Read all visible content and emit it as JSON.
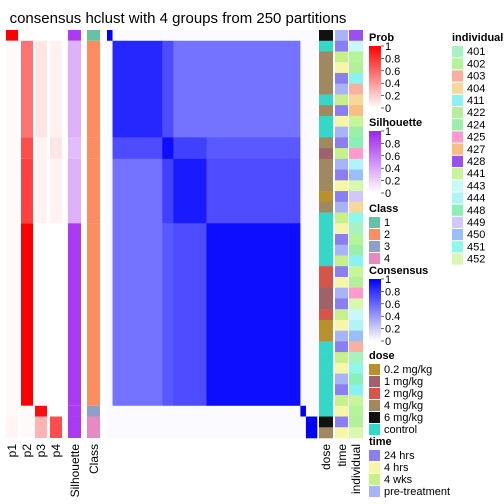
{
  "chart_data": {
    "type": "heatmap",
    "title": "consensus hclust with 4 groups from 250 partitions",
    "annotation_columns": [
      "p1",
      "p2",
      "p3",
      "p4",
      "Silhouette",
      "Class"
    ],
    "row_annotation_columns": [
      "dose",
      "time",
      "individual"
    ],
    "groups": [
      {
        "class": "1",
        "size": 1
      },
      {
        "class": "2",
        "size": 9
      },
      {
        "class": "2",
        "size": 2
      },
      {
        "class": "2",
        "size": 6
      },
      {
        "class": "2",
        "size": 17
      },
      {
        "class": "3",
        "size": 1
      },
      {
        "class": "4",
        "size": 2
      }
    ],
    "class_colors": {
      "1": "#66C2A5",
      "2": "#FC8D62",
      "3": "#8DA0CB",
      "4": "#E78AC3"
    },
    "legends": [
      {
        "title": "Prob",
        "kind": "gradient",
        "ticks": [
          "1",
          "0.8",
          "0.6",
          "0.4",
          "0.2",
          "0"
        ],
        "colors": [
          "#FF0000",
          "#FFFFFF"
        ]
      },
      {
        "title": "Silhouette",
        "kind": "gradient",
        "ticks": [
          "1",
          "0.8",
          "0.6",
          "0.4",
          "0.2",
          "0"
        ],
        "colors": [
          "#A020F0",
          "#FFFFFF"
        ]
      },
      {
        "title": "Class",
        "kind": "discrete",
        "items": [
          {
            "label": "1",
            "color": "#66C2A5"
          },
          {
            "label": "2",
            "color": "#FC8D62"
          },
          {
            "label": "3",
            "color": "#8DA0CB"
          },
          {
            "label": "4",
            "color": "#E78AC3"
          }
        ]
      },
      {
        "title": "Consensus",
        "kind": "gradient",
        "ticks": [
          "1",
          "0.8",
          "0.6",
          "0.4",
          "0.2",
          "0"
        ],
        "colors": [
          "#0000FF",
          "#FFFFFF"
        ]
      },
      {
        "title": "dose",
        "kind": "discrete",
        "items": [
          {
            "label": "0.2 mg/kg",
            "color": "#B8902E"
          },
          {
            "label": "1 mg/kg",
            "color": "#A0626A"
          },
          {
            "label": "2 mg/kg",
            "color": "#D6554B"
          },
          {
            "label": "4 mg/kg",
            "color": "#A08860"
          },
          {
            "label": "6 mg/kg",
            "color": "#111111"
          },
          {
            "label": "control",
            "color": "#35D8C8"
          }
        ]
      },
      {
        "title": "time",
        "kind": "discrete",
        "items": [
          {
            "label": "24 hrs",
            "color": "#8A7EF0"
          },
          {
            "label": "4 hrs",
            "color": "#F6F6A8"
          },
          {
            "label": "4 wks",
            "color": "#C6F08A"
          },
          {
            "label": "pre-treatment",
            "color": "#A8B4F8"
          }
        ]
      },
      {
        "title": "individual",
        "kind": "discrete",
        "items": [
          {
            "label": "401",
            "color": "#A8F2C0"
          },
          {
            "label": "402",
            "color": "#B4F59A"
          },
          {
            "label": "403",
            "color": "#F8B0A0"
          },
          {
            "label": "404",
            "color": "#F8D89A"
          },
          {
            "label": "411",
            "color": "#8AF2F0"
          },
          {
            "label": "422",
            "color": "#B4F09A"
          },
          {
            "label": "424",
            "color": "#9AF0A8"
          },
          {
            "label": "425",
            "color": "#FF9ACC"
          },
          {
            "label": "427",
            "color": "#F8C080"
          },
          {
            "label": "428",
            "color": "#9A50F0"
          },
          {
            "label": "441",
            "color": "#C8F59A"
          },
          {
            "label": "443",
            "color": "#C8F8F8"
          },
          {
            "label": "444",
            "color": "#B0F4F8"
          },
          {
            "label": "448",
            "color": "#8AF0B8"
          },
          {
            "label": "449",
            "color": "#D0C8F8"
          },
          {
            "label": "450",
            "color": "#9ABEF8"
          },
          {
            "label": "451",
            "color": "#90F8E8"
          },
          {
            "label": "452",
            "color": "#D8F8B0"
          }
        ]
      }
    ]
  }
}
